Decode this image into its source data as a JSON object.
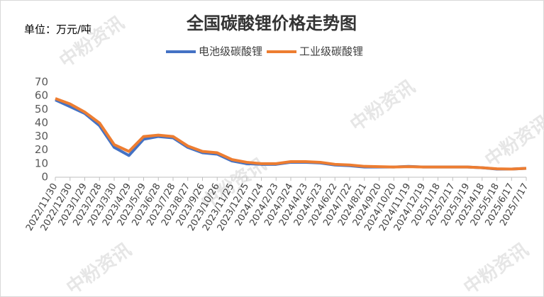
{
  "chart_data": {
    "type": "line",
    "title": "全国碳酸锂价格走势图",
    "unit_label": "单位：万元/吨",
    "watermark": "中粉资讯",
    "categories": [
      "2022/11/30",
      "2022/12/30",
      "2023/1/29",
      "2023/2/28",
      "2023/3/30",
      "2023/4/29",
      "2023/5/29",
      "2023/6/28",
      "2023/7/28",
      "2023/8/27",
      "2023/9/26",
      "2023/10/26",
      "2023/11/25",
      "2023/12/25",
      "2024/1/24",
      "2024/2/23",
      "2024/3/24",
      "2024/4/23",
      "2024/5/23",
      "2024/6/22",
      "2024/7/22",
      "2024/8/21",
      "2024/9/20",
      "2024/10/20",
      "2024/11/19",
      "2024/12/19",
      "2025/1/18",
      "2025/2/17",
      "2025/3/19",
      "2025/4/18",
      "2025/5/18",
      "2025/6/17",
      "2025/7/17"
    ],
    "series": [
      {
        "name": "电池级碳酸锂",
        "color": "#4472c4",
        "values": [
          57,
          52,
          47,
          38,
          22,
          16,
          28,
          30,
          29,
          22,
          18,
          17,
          12,
          10,
          9.5,
          9.5,
          11,
          11,
          10.5,
          9,
          8.5,
          7.5,
          7.5,
          7.5,
          8,
          7.5,
          7.5,
          7.5,
          7.5,
          7,
          6,
          6,
          6.5
        ]
      },
      {
        "name": "工业级碳酸锂",
        "color": "#ed7d31",
        "values": [
          58,
          54,
          48,
          40,
          24,
          19,
          30,
          31,
          30,
          23,
          19,
          18,
          13,
          11,
          10,
          10,
          11.5,
          11.5,
          11,
          9.5,
          9,
          8,
          7.8,
          7.5,
          7.8,
          7.5,
          7.5,
          7.5,
          7.5,
          7,
          6.2,
          6,
          6.5
        ]
      }
    ],
    "ylim": [
      0,
      70
    ],
    "yticks": [
      0,
      10,
      20,
      30,
      40,
      50,
      60,
      70
    ]
  }
}
